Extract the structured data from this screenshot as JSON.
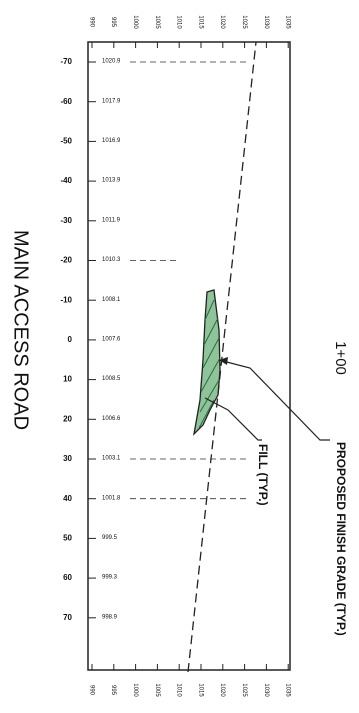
{
  "title": "MAIN ACCESS ROAD",
  "station": "1+00",
  "callouts": {
    "finish_grade": "PROPOSED FINISH GRADE (TYP.)",
    "fill": "FILL (TYP.)"
  },
  "offsets": [
    "-70",
    "-60",
    "-50",
    "-40",
    "-30",
    "-20",
    "-10",
    "0",
    "10",
    "20",
    "30",
    "40",
    "50",
    "60",
    "70"
  ],
  "elevations": [
    "1020.9",
    "1017.9",
    "1016.9",
    "1013.9",
    "1011.9",
    "1010.3",
    "1008.1",
    "1007.6",
    "1008.5",
    "1006.6",
    "1003.1",
    "1001.8",
    "999.5",
    "999.3",
    "998.9"
  ],
  "axis_top": [
    "990",
    "995",
    "1000",
    "1005",
    "1010",
    "1015",
    "1020",
    "1025",
    "1030",
    "1035"
  ],
  "axis_bottom": [
    "990",
    "995",
    "1000",
    "1005",
    "1010",
    "1015",
    "1020",
    "1025",
    "1030",
    "1035"
  ]
}
